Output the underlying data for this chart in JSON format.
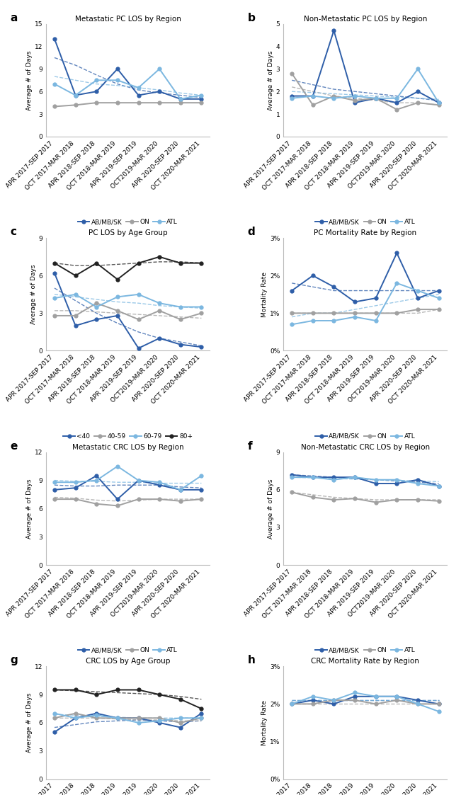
{
  "x_labels": [
    "APR 2017-SEP 2017",
    "OCT 2017-MAR 2018",
    "APR 2018-SEP 2018",
    "OCT 2018-MAR 2019",
    "APR 2019-SEP 2019",
    "OCT2019-MAR 2020",
    "APR 2020-SEP 2020",
    "OCT 2020-MAR 2021"
  ],
  "panel_a": {
    "title": "Metastatic PC LOS by Region",
    "ylabel": "Average # of Days",
    "ylim": [
      0,
      15
    ],
    "yticks": [
      0,
      3,
      6,
      9,
      12,
      15
    ],
    "series": {
      "AB/MB/SK": [
        13.0,
        5.5,
        6.0,
        9.0,
        5.5,
        6.0,
        5.0,
        5.0
      ],
      "ON": [
        4.0,
        4.2,
        4.5,
        4.5,
        4.5,
        4.5,
        4.5,
        4.5
      ],
      "ATL": [
        7.0,
        5.5,
        7.5,
        7.5,
        6.5,
        9.0,
        5.0,
        5.5
      ]
    },
    "trend": {
      "AB/MB/SK": [
        10.5,
        9.5,
        8.2,
        7.0,
        6.2,
        5.8,
        5.5,
        5.2
      ],
      "ATL": [
        8.0,
        7.5,
        7.0,
        6.8,
        6.5,
        6.2,
        5.8,
        5.5
      ]
    }
  },
  "panel_b": {
    "title": "Non-Metastatic PC LOS by Region",
    "ylabel": "Average # of Days",
    "ylim": [
      0,
      5
    ],
    "yticks": [
      0,
      1,
      2,
      3,
      4,
      5
    ],
    "series": {
      "AB/MB/SK": [
        1.8,
        1.8,
        4.7,
        1.5,
        1.7,
        1.5,
        2.0,
        1.5
      ],
      "ON": [
        2.8,
        1.4,
        1.8,
        1.6,
        1.7,
        1.2,
        1.5,
        1.4
      ],
      "ATL": [
        1.7,
        1.8,
        1.7,
        1.8,
        1.7,
        1.7,
        3.0,
        1.5
      ]
    },
    "trend": {
      "AB/MB/SK": [
        2.5,
        2.3,
        2.1,
        2.0,
        1.9,
        1.8,
        1.7,
        1.6
      ],
      "ON": [
        2.2,
        2.0,
        1.8,
        1.7,
        1.6,
        1.5,
        1.5,
        1.4
      ],
      "ATL": [
        2.0,
        1.95,
        1.9,
        1.85,
        1.8,
        1.75,
        1.7,
        1.65
      ]
    }
  },
  "panel_c": {
    "title": "PC LOS by Age Group",
    "ylabel": "Average # of Days",
    "ylim": [
      0,
      9
    ],
    "yticks": [
      0,
      3,
      6,
      9
    ],
    "series": {
      "<40": [
        6.2,
        2.0,
        2.5,
        2.8,
        0.2,
        1.0,
        0.5,
        0.3
      ],
      "40-59": [
        2.8,
        2.8,
        3.8,
        3.2,
        2.5,
        3.2,
        2.5,
        3.0
      ],
      "60-79": [
        4.2,
        4.5,
        3.5,
        4.3,
        4.5,
        3.8,
        3.5,
        3.5
      ],
      "80+": [
        7.0,
        6.0,
        7.0,
        5.7,
        7.0,
        7.5,
        7.0,
        7.0
      ]
    },
    "trend": {
      "<40": [
        5.0,
        4.0,
        3.0,
        2.2,
        1.5,
        1.0,
        0.7,
        0.4
      ],
      "40-59": [
        3.2,
        3.2,
        3.1,
        3.0,
        2.9,
        2.8,
        2.7,
        2.6
      ],
      "60-79": [
        4.5,
        4.3,
        4.1,
        3.9,
        3.8,
        3.6,
        3.5,
        3.4
      ],
      "80+": [
        7.0,
        6.8,
        6.8,
        6.9,
        7.0,
        7.1,
        7.1,
        7.0
      ]
    }
  },
  "panel_d": {
    "title": "PC Mortality Rate by Region",
    "ylabel": "Mortality Rate",
    "ylim": [
      0,
      0.03
    ],
    "yticks": [
      0,
      0.01,
      0.02,
      0.03
    ],
    "yticklabels": [
      "0%",
      "1%",
      "2%",
      "3%"
    ],
    "series": {
      "AB/MB/SK": [
        0.016,
        0.02,
        0.017,
        0.013,
        0.014,
        0.026,
        0.014,
        0.016
      ],
      "ON": [
        0.01,
        0.01,
        0.01,
        0.01,
        0.01,
        0.01,
        0.011,
        0.011
      ],
      "ATL": [
        0.007,
        0.008,
        0.008,
        0.009,
        0.008,
        0.018,
        0.016,
        0.014
      ]
    },
    "trend": {
      "AB/MB/SK": [
        0.018,
        0.017,
        0.016,
        0.016,
        0.016,
        0.016,
        0.016,
        0.016
      ],
      "ON": [
        0.01,
        0.01,
        0.01,
        0.01,
        0.01,
        0.01,
        0.01,
        0.011
      ],
      "ATL": [
        0.009,
        0.01,
        0.01,
        0.011,
        0.012,
        0.013,
        0.014,
        0.015
      ]
    }
  },
  "panel_e": {
    "title": "Metastatic CRC LOS by Region",
    "ylabel": "Average # of Days",
    "ylim": [
      0,
      12
    ],
    "yticks": [
      0,
      3,
      6,
      9,
      12
    ],
    "series": {
      "AB/MB/SK": [
        8.0,
        8.2,
        9.5,
        7.0,
        9.0,
        8.5,
        8.0,
        8.0
      ],
      "ON": [
        7.0,
        7.0,
        6.5,
        6.3,
        7.0,
        7.0,
        6.8,
        7.0
      ],
      "ATL": [
        8.8,
        8.8,
        9.0,
        10.5,
        9.0,
        8.8,
        8.0,
        9.5
      ]
    },
    "trend": {
      "AB/MB/SK": [
        8.5,
        8.4,
        8.4,
        8.5,
        8.5,
        8.5,
        8.3,
        8.2
      ],
      "ON": [
        7.2,
        7.1,
        6.9,
        6.8,
        6.9,
        7.0,
        7.0,
        7.0
      ],
      "ATL": [
        9.0,
        8.9,
        8.9,
        8.8,
        8.8,
        8.7,
        8.7,
        8.7
      ]
    }
  },
  "panel_f": {
    "title": "Non-Metastatic CRC LOS by Region",
    "ylabel": "Average # of Days",
    "ylim": [
      0,
      9
    ],
    "yticks": [
      0,
      3,
      6,
      9
    ],
    "series": {
      "AB/MB/SK": [
        7.2,
        7.0,
        7.0,
        7.0,
        6.5,
        6.5,
        6.8,
        6.3
      ],
      "ON": [
        5.8,
        5.4,
        5.2,
        5.3,
        5.0,
        5.2,
        5.2,
        5.1
      ],
      "ATL": [
        7.0,
        7.0,
        6.8,
        7.0,
        6.8,
        6.8,
        6.5,
        6.3
      ]
    },
    "trend": {
      "AB/MB/SK": [
        7.2,
        7.1,
        7.0,
        6.9,
        6.8,
        6.7,
        6.6,
        6.5
      ],
      "ON": [
        5.8,
        5.6,
        5.4,
        5.3,
        5.2,
        5.2,
        5.2,
        5.2
      ],
      "ATL": [
        7.0,
        6.95,
        6.9,
        6.85,
        6.8,
        6.75,
        6.7,
        6.65
      ]
    }
  },
  "panel_g": {
    "title": "CRC LOS by Age Group",
    "ylabel": "Average # of Days",
    "ylim": [
      0,
      12
    ],
    "yticks": [
      0,
      3,
      6,
      9,
      12
    ],
    "series": {
      "<40": [
        5.0,
        6.5,
        7.0,
        6.5,
        6.5,
        6.0,
        5.5,
        7.0
      ],
      "40-59": [
        6.5,
        7.0,
        6.5,
        6.5,
        6.5,
        6.5,
        6.0,
        6.5
      ],
      "60-79": [
        7.0,
        6.5,
        6.8,
        6.5,
        6.0,
        6.2,
        6.5,
        6.5
      ],
      "80+": [
        9.5,
        9.5,
        9.0,
        9.5,
        9.5,
        9.0,
        8.5,
        7.5
      ]
    },
    "trend": {
      "<40": [
        5.5,
        5.8,
        6.1,
        6.2,
        6.3,
        6.2,
        6.1,
        6.2
      ],
      "40-59": [
        6.5,
        6.5,
        6.5,
        6.4,
        6.3,
        6.3,
        6.2,
        6.2
      ],
      "60-79": [
        6.9,
        6.8,
        6.7,
        6.6,
        6.5,
        6.5,
        6.5,
        6.5
      ],
      "80+": [
        9.5,
        9.4,
        9.3,
        9.2,
        9.1,
        9.0,
        8.8,
        8.5
      ]
    }
  },
  "panel_h": {
    "title": "CRC Mortality Rate by Region",
    "ylabel": "Mortality Rate",
    "ylim": [
      0,
      0.03
    ],
    "yticks": [
      0,
      0.01,
      0.02,
      0.03
    ],
    "yticklabels": [
      "0%",
      "1%",
      "2%",
      "3%"
    ],
    "series": {
      "AB/MB/SK": [
        0.02,
        0.021,
        0.02,
        0.022,
        0.022,
        0.022,
        0.021,
        0.02
      ],
      "ON": [
        0.02,
        0.02,
        0.021,
        0.021,
        0.02,
        0.021,
        0.02,
        0.02
      ],
      "ATL": [
        0.02,
        0.022,
        0.021,
        0.023,
        0.022,
        0.022,
        0.02,
        0.018
      ]
    },
    "trend": {
      "AB/MB/SK": [
        0.021,
        0.021,
        0.021,
        0.021,
        0.021,
        0.021,
        0.021,
        0.021
      ],
      "ON": [
        0.02,
        0.02,
        0.02,
        0.02,
        0.02,
        0.02,
        0.02,
        0.02
      ],
      "ATL": [
        0.021,
        0.021,
        0.021,
        0.021,
        0.021,
        0.021,
        0.021,
        0.021
      ]
    }
  }
}
